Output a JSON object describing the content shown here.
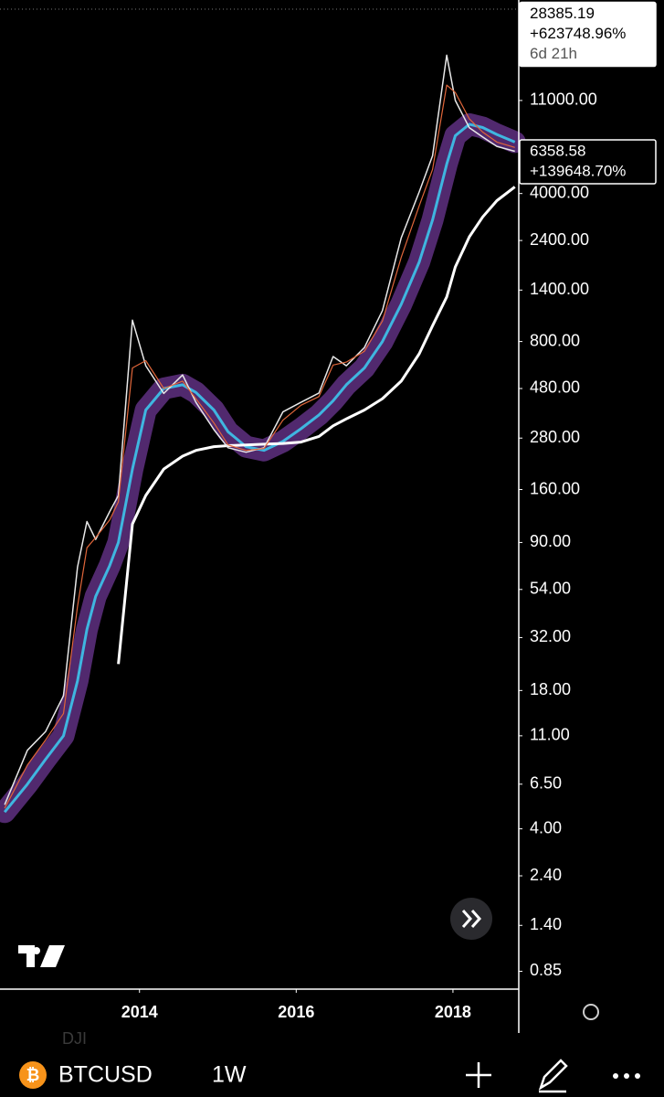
{
  "chart_data": {
    "type": "line",
    "symbol": "BTCUSD",
    "interval": "1W",
    "compare_symbol": "DJI",
    "log_scale": true,
    "x": [
      2012.28,
      2012.57,
      2012.8,
      2013.03,
      2013.21,
      2013.33,
      2013.44,
      2013.62,
      2013.73,
      2013.91,
      2014.08,
      2014.31,
      2014.55,
      2014.72,
      2014.95,
      2015.13,
      2015.36,
      2015.59,
      2015.83,
      2016.06,
      2016.29,
      2016.47,
      2016.64,
      2016.87,
      2017.1,
      2017.34,
      2017.57,
      2017.74,
      2017.92,
      2018.03,
      2018.21,
      2018.38,
      2018.56,
      2018.79
    ],
    "xlim": [
      2012.22,
      2018.84
    ],
    "xticks": [
      2014,
      2016,
      2018
    ],
    "ylim": [
      0.7,
      32800
    ],
    "yticks": [
      {
        "value": 11000,
        "label": "11000.00"
      },
      {
        "value": 4000,
        "label": "4000.00"
      },
      {
        "value": 2400,
        "label": "2400.00"
      },
      {
        "value": 1400,
        "label": "1400.00"
      },
      {
        "value": 800,
        "label": "800.00"
      },
      {
        "value": 480,
        "label": "480.00"
      },
      {
        "value": 280,
        "label": "280.00"
      },
      {
        "value": 160,
        "label": "160.00"
      },
      {
        "value": 90,
        "label": "90.00"
      },
      {
        "value": 54,
        "label": "54.00"
      },
      {
        "value": 32,
        "label": "32.00"
      },
      {
        "value": 18,
        "label": "18.00"
      },
      {
        "value": 11,
        "label": "11.00"
      },
      {
        "value": 6.5,
        "label": "6.50"
      },
      {
        "value": 4,
        "label": "4.00"
      },
      {
        "value": 2.4,
        "label": "2.40"
      },
      {
        "value": 1.4,
        "label": "1.40"
      },
      {
        "value": 0.85,
        "label": "0.85"
      }
    ],
    "series": [
      {
        "name": "price",
        "color": "#e8e8e8",
        "width": 1.5,
        "values": [
          5.2,
          9.4,
          11.5,
          17,
          69,
          113,
          93,
          126,
          150,
          1010,
          615,
          455,
          556,
          413,
          307,
          252,
          240,
          252,
          372,
          413,
          457,
          680,
          615,
          750,
          1120,
          2470,
          4070,
          6030,
          18000,
          11000,
          8170,
          7390,
          6680,
          6330
        ]
      },
      {
        "name": "ema",
        "color": "#e0663a",
        "width": 1.2,
        "values": [
          5,
          8,
          10.5,
          14,
          45,
          85,
          95,
          115,
          140,
          600,
          650,
          480,
          520,
          430,
          330,
          260,
          245,
          250,
          340,
          400,
          440,
          620,
          640,
          720,
          1000,
          2000,
          3500,
          5200,
          13000,
          12000,
          9000,
          7800,
          7000,
          6600
        ]
      },
      {
        "name": "ma",
        "color": "#3fb6e0",
        "band_color": "#5a2d7a",
        "width": 3,
        "values": [
          4.8,
          6.5,
          8.5,
          11,
          20,
          35,
          50,
          70,
          90,
          200,
          380,
          480,
          500,
          460,
          380,
          300,
          255,
          245,
          270,
          310,
          360,
          420,
          500,
          600,
          800,
          1200,
          1900,
          3000,
          5500,
          7500,
          8500,
          8200,
          7600,
          7000
        ]
      },
      {
        "name": "long-ma",
        "color": "#ffffff",
        "width": 3,
        "values": [
          null,
          null,
          null,
          null,
          null,
          null,
          null,
          null,
          24,
          110,
          150,
          200,
          230,
          245,
          255,
          258,
          260,
          262,
          264,
          268,
          285,
          320,
          345,
          380,
          430,
          520,
          700,
          950,
          1300,
          1800,
          2500,
          3100,
          3700,
          4300
        ]
      }
    ],
    "price_labels": [
      {
        "value": 28385.19,
        "label": "28385.19",
        "change": "+623748.96%",
        "countdown": "6d 21h"
      },
      {
        "value": 6358.58,
        "label": "6358.58",
        "change": "+139648.70%"
      }
    ]
  }
}
